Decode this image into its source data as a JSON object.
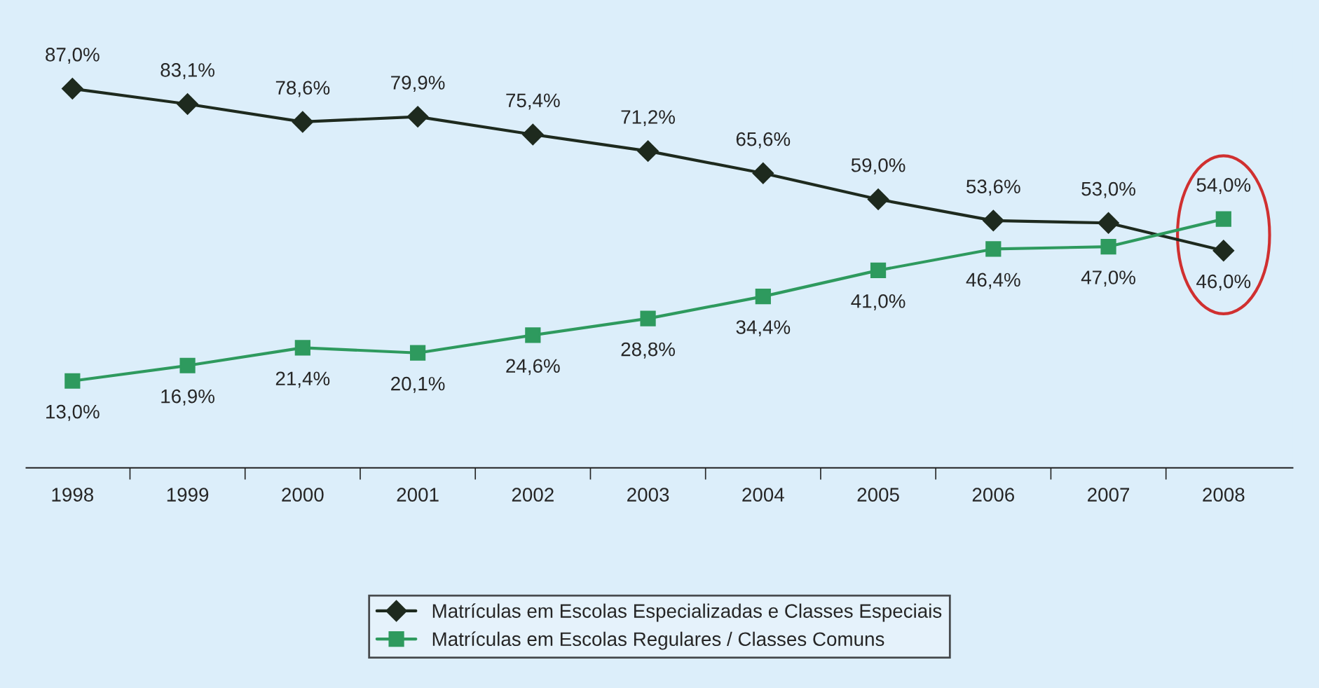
{
  "chart_data": {
    "type": "line",
    "categories": [
      "1998",
      "1999",
      "2000",
      "2001",
      "2002",
      "2003",
      "2004",
      "2005",
      "2006",
      "2007",
      "2008"
    ],
    "series": [
      {
        "name": "Matrículas em Escolas Especializadas e Classes Especiais",
        "color": "#1e2a1e",
        "marker": "diamond",
        "values": [
          87.0,
          83.1,
          78.6,
          79.9,
          75.4,
          71.2,
          65.6,
          59.0,
          53.6,
          53.0,
          46.0
        ],
        "value_labels": [
          "87,0%",
          "83,1%",
          "78,6%",
          "79,9%",
          "75,4%",
          "71,2%",
          "65,6%",
          "59,0%",
          "53,6%",
          "53,0%",
          "46,0%"
        ]
      },
      {
        "name": "Matrículas em Escolas Regulares / Classes Comuns",
        "color": "#2e9a5e",
        "marker": "square",
        "values": [
          13.0,
          16.9,
          21.4,
          20.1,
          24.6,
          28.8,
          34.4,
          41.0,
          46.4,
          47.0,
          54.0
        ],
        "value_labels": [
          "13,0%",
          "16,9%",
          "21,4%",
          "20,1%",
          "24,6%",
          "28,8%",
          "34,4%",
          "41,0%",
          "46,4%",
          "47,0%",
          "54,0%"
        ]
      }
    ],
    "legend": "bottom",
    "grid": false,
    "tick_labels": "x"
  }
}
